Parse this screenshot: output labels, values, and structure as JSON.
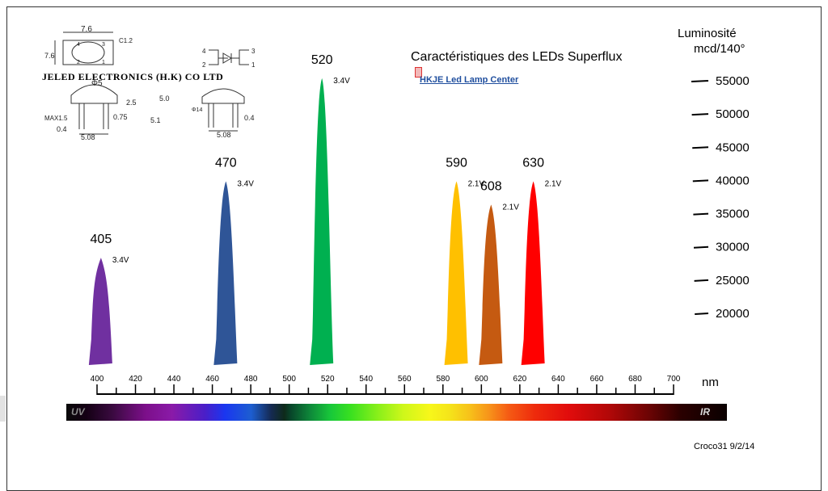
{
  "chart_data": {
    "type": "area",
    "title": "Caractéristiques des LEDs Superflux",
    "link_text": "HKJE Led Lamp Center",
    "company": "JELED ELECTRONICS (H.K) CO LTD",
    "ylabel_line1": "Luminosité",
    "ylabel_line2": "mcd/140°",
    "xunit": "nm",
    "xlim": [
      400,
      700
    ],
    "x_ticks": [
      400,
      420,
      440,
      460,
      480,
      500,
      520,
      540,
      560,
      580,
      600,
      620,
      640,
      660,
      680,
      700
    ],
    "x_tick_labels": [
      "400",
      "420",
      "440",
      "460",
      "480",
      "500",
      "520",
      "540",
      "560",
      "580",
      "600",
      "620",
      "640",
      "660",
      "680",
      "700"
    ],
    "y_ticks": [
      55000,
      50000,
      45000,
      40000,
      35000,
      30000,
      25000,
      20000
    ],
    "y_tick_labels": [
      "55000",
      "50000",
      "45000",
      "40000",
      "35000",
      "30000",
      "25000",
      "20000"
    ],
    "series": [
      {
        "name": "405",
        "wavelength": 405,
        "luminosity": 28000,
        "voltage": "3.4V",
        "color": "#7030a0"
      },
      {
        "name": "470",
        "wavelength": 470,
        "luminosity": 39500,
        "voltage": "3.4V",
        "color": "#2f5597"
      },
      {
        "name": "520",
        "wavelength": 520,
        "luminosity": 55000,
        "voltage": "3.4V",
        "color": "#00b050"
      },
      {
        "name": "590",
        "wavelength": 590,
        "luminosity": 39500,
        "voltage": "2.1V",
        "color": "#ffc000"
      },
      {
        "name": "608",
        "wavelength": 608,
        "luminosity": 36000,
        "voltage": "2.1V",
        "color": "#c55a11"
      },
      {
        "name": "630",
        "wavelength": 630,
        "luminosity": 39500,
        "voltage": "2.1V",
        "color": "#ff0000"
      }
    ],
    "spectrum_labels": {
      "left": "UV",
      "right": "IR"
    },
    "credit": "Croco31 9/2/14",
    "drawing_labels": [
      "7.6",
      "C1.2",
      "7.6",
      "Φ5",
      "2.5",
      "5.0",
      "5.1",
      "MAX1.5",
      "0.75",
      "0.4",
      "5.08",
      "Φ14",
      "0.4",
      "5.08",
      "4",
      "3",
      "2",
      "1",
      "4",
      "3",
      "2",
      "1"
    ]
  }
}
